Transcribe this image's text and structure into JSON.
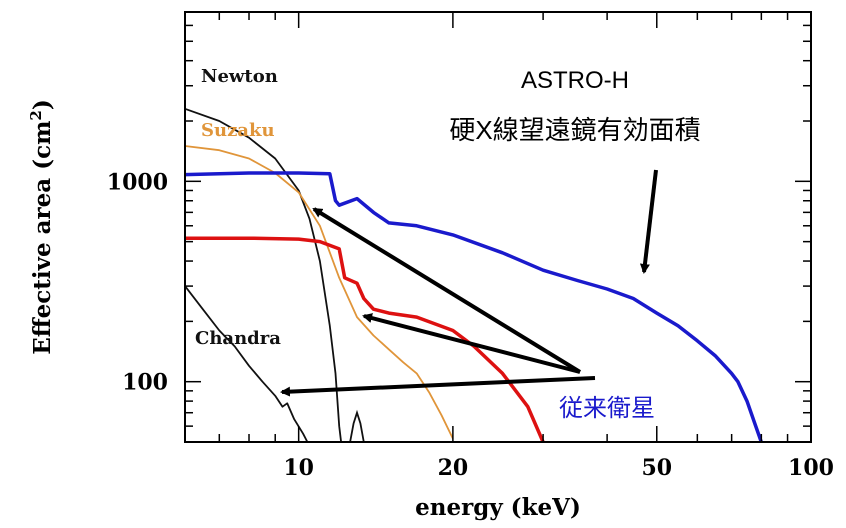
{
  "chart_data": {
    "type": "line",
    "x_scale": "log",
    "y_scale": "log",
    "xlabel": "energy (keV)",
    "ylabel_main": "Effective area (cm",
    "ylabel_sup": "2",
    "ylabel_close": ")",
    "xlim": [
      6,
      100
    ],
    "ylim": [
      50,
      7000
    ],
    "x_ticks": [
      {
        "value": 10,
        "label": "10"
      },
      {
        "value": 20,
        "label": "20"
      },
      {
        "value": 50,
        "label": "50"
      },
      {
        "value": 100,
        "label": "100"
      }
    ],
    "y_ticks": [
      {
        "value": 100,
        "label": "100"
      },
      {
        "value": 1000,
        "label": "1000"
      }
    ],
    "series": [
      {
        "name": "Newton",
        "color": "#111111",
        "points": [
          [
            6,
            2300
          ],
          [
            7,
            2000
          ],
          [
            8,
            1650
          ],
          [
            9,
            1300
          ],
          [
            10,
            900
          ],
          [
            10.5,
            650
          ],
          [
            11,
            400
          ],
          [
            11.5,
            190
          ],
          [
            11.8,
            110
          ],
          [
            12,
            60
          ],
          [
            12.1,
            50
          ]
        ]
      },
      {
        "name": "Suzaku",
        "color": "#e0953a",
        "points": [
          [
            6,
            1500
          ],
          [
            7,
            1430
          ],
          [
            8,
            1300
          ],
          [
            9,
            1100
          ],
          [
            10,
            880
          ],
          [
            11,
            600
          ],
          [
            12,
            330
          ],
          [
            13,
            210
          ],
          [
            14,
            170
          ],
          [
            15,
            145
          ],
          [
            16,
            125
          ],
          [
            17,
            110
          ],
          [
            18,
            88
          ],
          [
            19,
            68
          ],
          [
            20,
            52
          ]
        ]
      },
      {
        "name": "Chandra",
        "color": "#111111",
        "points": [
          [
            6,
            300
          ],
          [
            6.5,
            230
          ],
          [
            7,
            180
          ],
          [
            7.5,
            150
          ],
          [
            8,
            120
          ],
          [
            8.5,
            100
          ],
          [
            9,
            85
          ],
          [
            9.3,
            75
          ],
          [
            9.5,
            78
          ],
          [
            9.8,
            65
          ],
          [
            10.2,
            55
          ],
          [
            10.4,
            50
          ]
        ]
      },
      {
        "name": "",
        "color": "#1a1acc",
        "points": [
          [
            6,
            1080
          ],
          [
            8,
            1100
          ],
          [
            10,
            1100
          ],
          [
            11.5,
            1090
          ],
          [
            11.8,
            800
          ],
          [
            12,
            760
          ],
          [
            13,
            820
          ],
          [
            14,
            700
          ],
          [
            15,
            620
          ],
          [
            17,
            600
          ],
          [
            20,
            540
          ],
          [
            25,
            440
          ],
          [
            30,
            360
          ],
          [
            35,
            320
          ],
          [
            40,
            290
          ],
          [
            45,
            260
          ],
          [
            50,
            220
          ],
          [
            55,
            190
          ],
          [
            60,
            160
          ],
          [
            65,
            135
          ],
          [
            70,
            110
          ],
          [
            72,
            100
          ],
          [
            75,
            80
          ],
          [
            78,
            60
          ],
          [
            80,
            50
          ]
        ]
      },
      {
        "name": "",
        "color": "#dd1111",
        "points": [
          [
            6,
            520
          ],
          [
            8,
            520
          ],
          [
            10,
            515
          ],
          [
            11,
            500
          ],
          [
            12,
            460
          ],
          [
            12.3,
            330
          ],
          [
            13,
            310
          ],
          [
            13.4,
            260
          ],
          [
            14,
            230
          ],
          [
            15,
            220
          ],
          [
            17,
            210
          ],
          [
            20,
            180
          ],
          [
            22,
            150
          ],
          [
            25,
            110
          ],
          [
            28,
            75
          ],
          [
            30,
            50
          ]
        ]
      }
    ],
    "extra_segments": [
      {
        "color": "#111111",
        "points": [
          [
            12.6,
            50
          ],
          [
            12.8,
            62
          ],
          [
            13.0,
            70
          ],
          [
            13.2,
            62
          ],
          [
            13.4,
            50
          ]
        ]
      }
    ],
    "annotations": {
      "title_line1": "ASTRO-H",
      "title_line2": "硬X線望遠鏡有効面積",
      "label_newton": "Newton",
      "label_suzaku": "Suzaku",
      "label_chandra": "Chandra",
      "label_conventional": "従来衛星"
    },
    "colors": {
      "axis": "#000000",
      "conventional_label": "#1a1acc",
      "suzaku_label": "#e0953a",
      "arrow": "#000000"
    }
  }
}
